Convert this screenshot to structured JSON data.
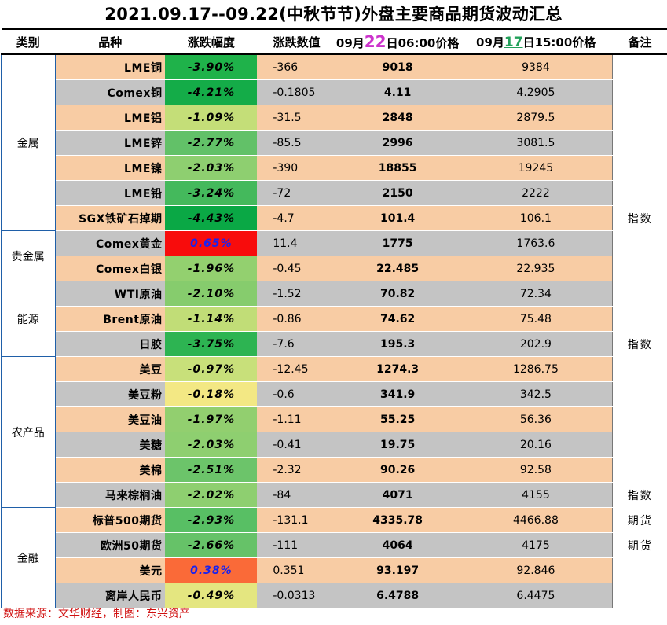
{
  "title": "2021.09.17--09.22(中秋节节)外盘主要商品期货波动汇总",
  "headers": {
    "category": "类别",
    "name": "品种",
    "pct": "涨跌幅度",
    "chg": "涨跌数值",
    "p22_pre": "09月",
    "p22_day": "22",
    "p22_post": "日06:00价格",
    "p17_pre": "09月",
    "p17_day": "17",
    "p17_post": "日15:00价格",
    "note": "备注"
  },
  "categories": [
    "金属",
    "贵金属",
    "能源",
    "农产品",
    "金融"
  ],
  "rows": [
    {
      "name": "LME铜",
      "pct": "-3.90%",
      "chg": "-366",
      "p22": "9018",
      "p17": "9384",
      "note": "",
      "color": "#1fb24a",
      "pctColor": "#000000"
    },
    {
      "name": "Comex铜",
      "pct": "-4.21%",
      "chg": "-0.1805",
      "p22": "4.11",
      "p17": "4.2905",
      "note": "",
      "color": "#14ac48",
      "pctColor": "#000000"
    },
    {
      "name": "LME铝",
      "pct": "-1.09%",
      "chg": "-31.5",
      "p22": "2848",
      "p17": "2879.5",
      "note": "",
      "color": "#c4de78",
      "pctColor": "#000000"
    },
    {
      "name": "LME锌",
      "pct": "-2.77%",
      "chg": "-85.5",
      "p22": "2996",
      "p17": "3081.5",
      "note": "",
      "color": "#62c168",
      "pctColor": "#000000"
    },
    {
      "name": "LME镍",
      "pct": "-2.03%",
      "chg": "-390",
      "p22": "18855",
      "p17": "19245",
      "note": "",
      "color": "#8ecf70",
      "pctColor": "#000000"
    },
    {
      "name": "LME铅",
      "pct": "-3.24%",
      "chg": "-72",
      "p22": "2150",
      "p17": "2222",
      "note": "",
      "color": "#44b95c",
      "pctColor": "#000000"
    },
    {
      "name": "SGX铁矿石掉期",
      "pct": "-4.43%",
      "chg": "-4.7",
      "p22": "101.4",
      "p17": "106.1",
      "note": "指数",
      "color": "#0aa845",
      "pctColor": "#000000"
    },
    {
      "name": "Comex黄金",
      "pct": "0.65%",
      "chg": "11.4",
      "p22": "1775",
      "p17": "1763.6",
      "note": "",
      "color": "#f80c0c",
      "pctColor": "#1a22ee"
    },
    {
      "name": "Comex白银",
      "pct": "-1.96%",
      "chg": "-0.45",
      "p22": "22.485",
      "p17": "22.935",
      "note": "",
      "color": "#93d06f",
      "pctColor": "#000000"
    },
    {
      "name": "WTI原油",
      "pct": "-2.10%",
      "chg": "-1.52",
      "p22": "70.82",
      "p17": "72.34",
      "note": "",
      "color": "#86cc6d",
      "pctColor": "#000000"
    },
    {
      "name": "Brent原油",
      "pct": "-1.14%",
      "chg": "-0.86",
      "p22": "74.62",
      "p17": "75.48",
      "note": "",
      "color": "#c1dd77",
      "pctColor": "#000000"
    },
    {
      "name": "日胶",
      "pct": "-3.75%",
      "chg": "-7.6",
      "p22": "195.3",
      "p17": "202.9",
      "note": "指数",
      "color": "#2db452",
      "pctColor": "#000000"
    },
    {
      "name": "美豆",
      "pct": "-0.97%",
      "chg": "-12.45",
      "p22": "1274.3",
      "p17": "1286.75",
      "note": "",
      "color": "#c8e07a",
      "pctColor": "#000000"
    },
    {
      "name": "美豆粉",
      "pct": "-0.18%",
      "chg": "-0.6",
      "p22": "341.9",
      "p17": "342.5",
      "note": "",
      "color": "#f3e884",
      "pctColor": "#000000"
    },
    {
      "name": "美豆油",
      "pct": "-1.97%",
      "chg": "-1.11",
      "p22": "55.25",
      "p17": "56.36",
      "note": "",
      "color": "#92cf6f",
      "pctColor": "#000000"
    },
    {
      "name": "美糖",
      "pct": "-2.03%",
      "chg": "-0.41",
      "p22": "19.75",
      "p17": "20.16",
      "note": "",
      "color": "#8ecf70",
      "pctColor": "#000000"
    },
    {
      "name": "美棉",
      "pct": "-2.51%",
      "chg": "-2.32",
      "p22": "90.26",
      "p17": "92.58",
      "note": "",
      "color": "#6cc46a",
      "pctColor": "#000000"
    },
    {
      "name": "马来棕榈油",
      "pct": "-2.02%",
      "chg": "-84",
      "p22": "4071",
      "p17": "4155",
      "note": "指数",
      "color": "#8ecf70",
      "pctColor": "#000000"
    },
    {
      "name": "标普500期货",
      "pct": "-2.93%",
      "chg": "-131.1",
      "p22": "4335.78",
      "p17": "4466.88",
      "note": "期货",
      "color": "#58bf64",
      "pctColor": "#000000"
    },
    {
      "name": "欧洲50期货",
      "pct": "-2.66%",
      "chg": "-111",
      "p22": "4064",
      "p17": "4175",
      "note": "期货",
      "color": "#66c268",
      "pctColor": "#000000"
    },
    {
      "name": "美元",
      "pct": "0.38%",
      "chg": "0.351",
      "p22": "93.197",
      "p17": "92.846",
      "note": "",
      "color": "#fa6a38",
      "pctColor": "#1a22ee"
    },
    {
      "name": "离岸人民币",
      "pct": "-0.49%",
      "chg": "-0.0313",
      "p22": "6.4788",
      "p17": "6.4475",
      "note": "",
      "color": "#e4e680",
      "pctColor": "#000000"
    }
  ],
  "footer": "数据来源：文华财经，制图：东兴资产"
}
